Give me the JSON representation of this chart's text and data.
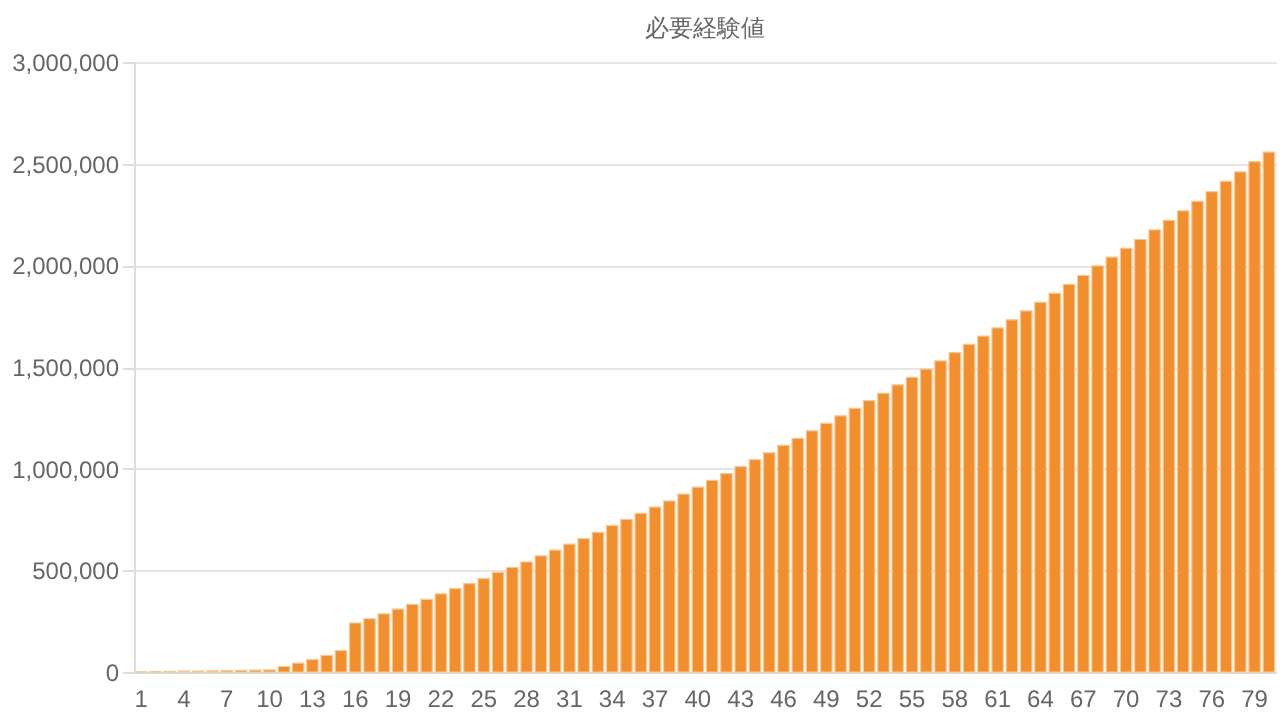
{
  "chart_data": {
    "type": "bar",
    "title": "必要経験値",
    "categories": [
      "1",
      null,
      null,
      "4",
      null,
      null,
      "7",
      null,
      null,
      "10",
      null,
      null,
      "13",
      null,
      null,
      "16",
      null,
      null,
      "19",
      null,
      null,
      "22",
      null,
      null,
      "25",
      null,
      null,
      "28",
      null,
      null,
      "31",
      null,
      null,
      "34",
      null,
      null,
      "37",
      null,
      null,
      "40",
      null,
      null,
      "43",
      null,
      null,
      "46",
      null,
      null,
      "49",
      null,
      null,
      "52",
      null,
      null,
      "55",
      null,
      null,
      "58",
      null,
      null,
      "61",
      null,
      null,
      "64",
      null,
      null,
      "67",
      null,
      null,
      "70",
      null,
      null,
      "73",
      null,
      null,
      "76",
      null,
      null,
      "79",
      null
    ],
    "values": [
      1000,
      2000,
      3000,
      4000,
      5000,
      6000,
      7000,
      8000,
      9000,
      10000,
      27000,
      44000,
      61000,
      82000,
      105000,
      241000,
      262000,
      286000,
      309000,
      333000,
      357000,
      384000,
      410000,
      435000,
      459000,
      490000,
      514000,
      541000,
      571000,
      599000,
      629000,
      656000,
      687000,
      720000,
      750000,
      780000,
      811000,
      841000,
      875000,
      909000,
      942000,
      976000,
      1010000,
      1044000,
      1078000,
      1115000,
      1149000,
      1186000,
      1223000,
      1260000,
      1297000,
      1334000,
      1371000,
      1412000,
      1449000,
      1490000,
      1530000,
      1571000,
      1611000,
      1652000,
      1692000,
      1732000,
      1776000,
      1818000,
      1862000,
      1906000,
      1950000,
      1997000,
      2040000,
      2084000,
      2127000,
      2174000,
      2221000,
      2268000,
      2315000,
      2362000,
      2413000,
      2460000,
      2510000,
      2557000
    ],
    "color": "#f28e2b",
    "ylim": [
      0,
      3000000
    ],
    "yticks": [
      {
        "value": 0,
        "label": "0"
      },
      {
        "value": 500000,
        "label": "500,000"
      },
      {
        "value": 1000000,
        "label": "1,000,000"
      },
      {
        "value": 1500000,
        "label": "1,500,000"
      },
      {
        "value": 2000000,
        "label": "2,000,000"
      },
      {
        "value": 2500000,
        "label": "2,500,000"
      },
      {
        "value": 3000000,
        "label": "3,000,000"
      }
    ],
    "grid": "y"
  }
}
